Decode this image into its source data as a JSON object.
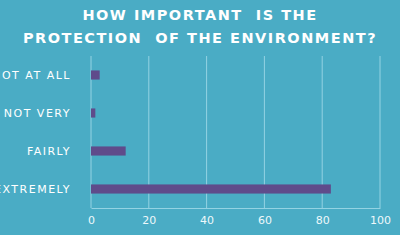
{
  "chart_data": {
    "type": "bar",
    "orientation": "horizontal",
    "title": "HOW IMPORTANT  IS THE\nPROTECTION  OF THE ENVIRONMENT?",
    "categories": [
      "NOT AT ALL",
      "NOT VERY",
      "FAIRLY",
      "EXTREMELY"
    ],
    "values": [
      3,
      1.5,
      12,
      83
    ],
    "color": "#5f4b8b",
    "xlim": [
      0,
      100
    ],
    "xticks": [
      0,
      20,
      40,
      60,
      80,
      100
    ],
    "grid": true
  }
}
